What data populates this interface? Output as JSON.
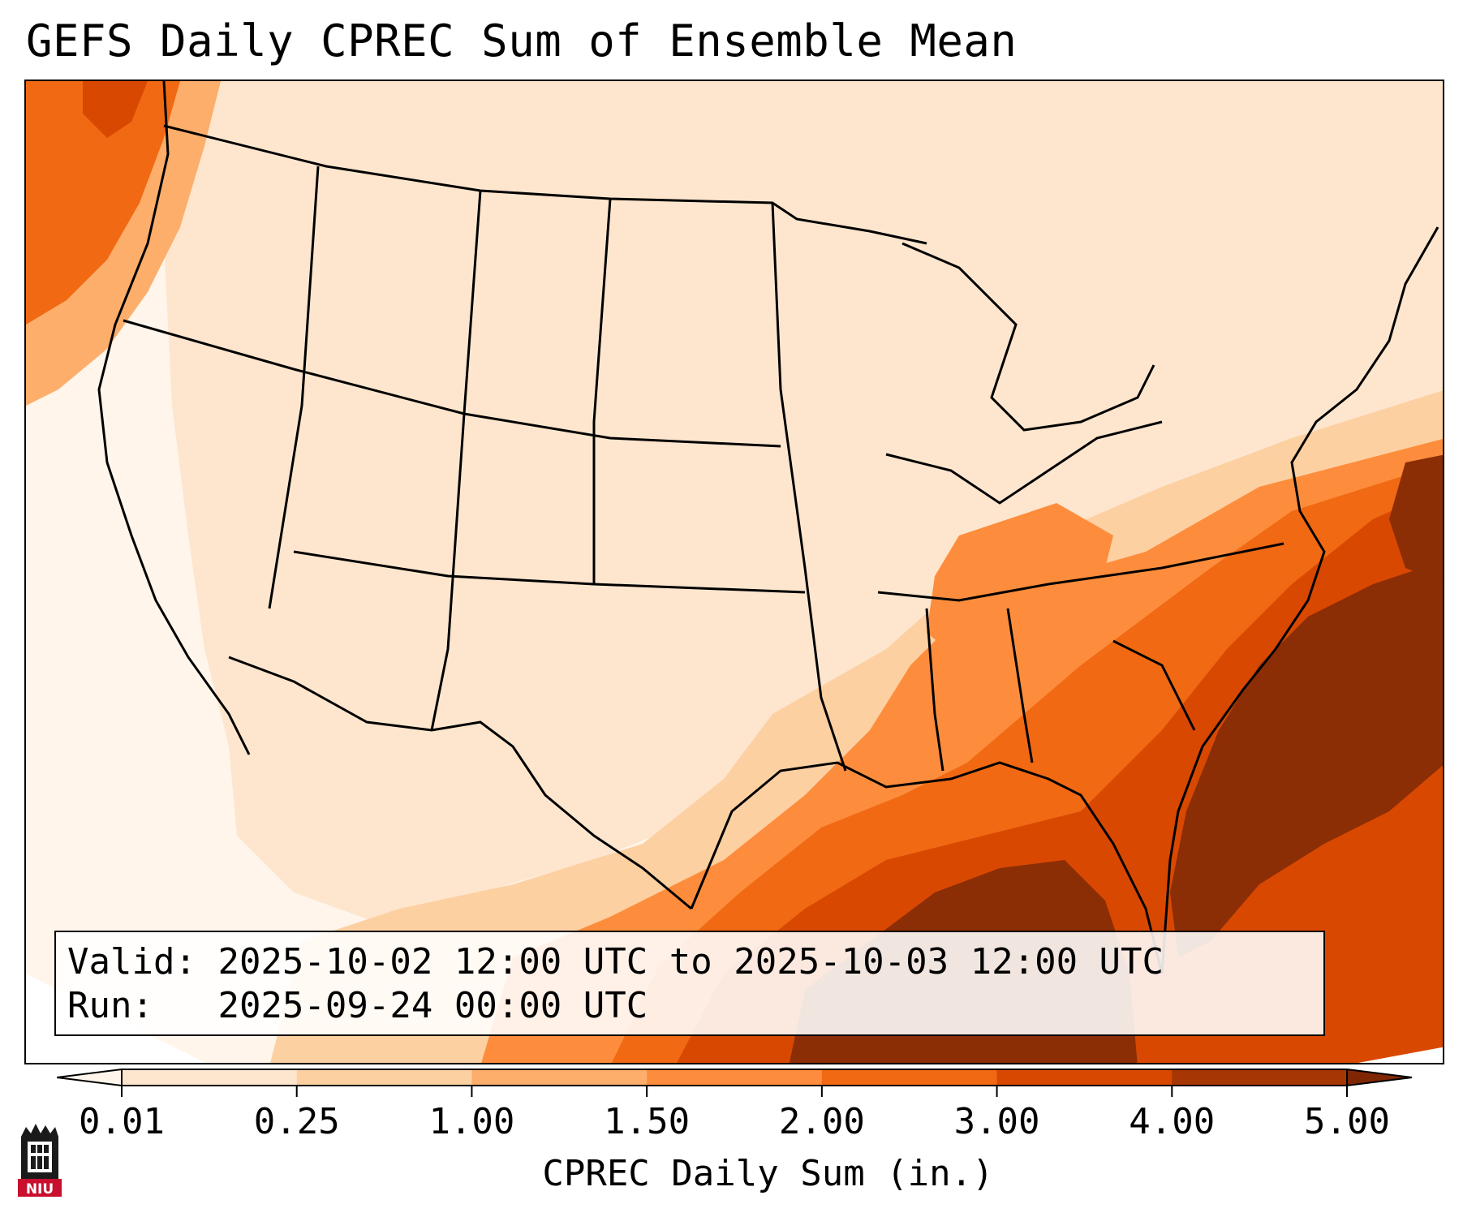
{
  "title": "GEFS Daily CPREC Sum of Ensemble Mean",
  "valid_label": "Valid:",
  "valid_value": "2025-10-02 12:00 UTC to 2025-10-03 12:00 UTC",
  "run_label": "Run:",
  "run_value": "2025-09-24 00:00 UTC",
  "colorbar": {
    "label": "CPREC Daily Sum (in.)",
    "ticks": [
      "0.01",
      "0.25",
      "1.00",
      "1.50",
      "2.00",
      "3.00",
      "4.00",
      "5.00"
    ],
    "colors": [
      "#fff5eb",
      "#fee6ce",
      "#fdd0a2",
      "#fdae6b",
      "#fd8d3c",
      "#f16913",
      "#d94801",
      "#a63603",
      "#7f2704"
    ]
  },
  "logo": {
    "text": "NIU",
    "icon": "niu-tower-logo-icon",
    "color": "#c8102e"
  },
  "map": {
    "region": "contiguous-united-states",
    "colors": {
      "ocean_heavy": "#8b2e05",
      "heavy": "#d94801",
      "moderate": "#f47a2f",
      "light": "#fdd0a2",
      "trace": "#fee6ce",
      "none": "#fff5eb",
      "borders": "#000000"
    }
  }
}
